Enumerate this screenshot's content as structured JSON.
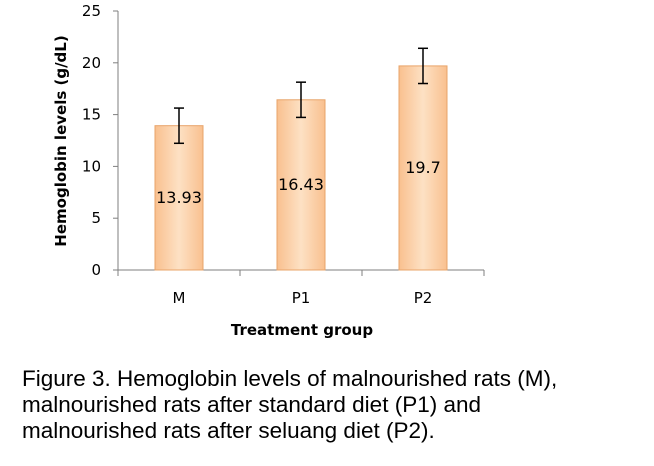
{
  "chart_data": {
    "type": "bar",
    "categories": [
      "M",
      "P1",
      "P2"
    ],
    "values": [
      13.93,
      16.43,
      19.7
    ],
    "data_labels": [
      "13.93",
      "16.43",
      "19.7"
    ],
    "error": [
      1.7,
      1.7,
      1.7
    ],
    "ylim": [
      0,
      25
    ],
    "yticks": [
      0,
      5,
      10,
      15,
      20,
      25
    ],
    "ytick_labels": [
      "0",
      "5",
      "10",
      "15",
      "20",
      "25"
    ],
    "xlabel": "Treatment group",
    "ylabel": "Hemoglobin levels (g/dL)",
    "grid": false,
    "legend": false,
    "bar_fill_light": "#fde1c4",
    "bar_fill_mid": "#f9c08f",
    "bar_stroke": "#e8a46a"
  },
  "caption": {
    "lines": [
      "Figure 3.   Hemoglobin levels of malnourished rats (M),",
      "malnourished rats after standard diet (P1) and",
      "malnourished rats after seluang diet (P2)."
    ]
  }
}
